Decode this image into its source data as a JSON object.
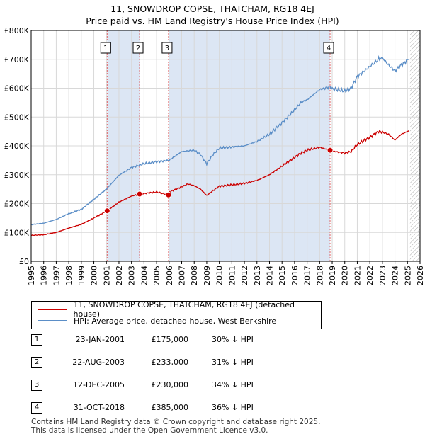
{
  "title_line1": "11, SNOWDROP COPSE, THATCHAM, RG18 4EJ",
  "title_line2": "Price paid vs. HM Land Registry's House Price Index (HPI)",
  "colors": {
    "property": "#cc0000",
    "hpi": "#5b8ec7",
    "shade": "#dce6f4",
    "grid": "#d8d8d8",
    "marker_line": "#e06666"
  },
  "chart_data": {
    "type": "line",
    "xlim": [
      1995,
      2026
    ],
    "ylim": [
      0,
      800000
    ],
    "y_ticks": [
      0,
      100000,
      200000,
      300000,
      400000,
      500000,
      600000,
      700000,
      800000
    ],
    "y_tick_labels": [
      "£0",
      "£100K",
      "£200K",
      "£300K",
      "£400K",
      "£500K",
      "£600K",
      "£700K",
      "£800K"
    ],
    "x_ticks": [
      "1995",
      "1996",
      "1997",
      "1998",
      "1999",
      "2000",
      "2001",
      "2002",
      "2003",
      "2004",
      "2005",
      "2006",
      "2007",
      "2008",
      "2009",
      "2010",
      "2011",
      "2012",
      "2013",
      "2014",
      "2015",
      "2016",
      "2017",
      "2018",
      "2019",
      "2020",
      "2021",
      "2022",
      "2023",
      "2024",
      "2025",
      "2026"
    ],
    "series": [
      {
        "name": "11, SNOWDROP COPSE, THATCHAM, RG18 4EJ (detached house)",
        "points": [
          [
            1995,
            90000
          ],
          [
            1996,
            92000
          ],
          [
            1997,
            100000
          ],
          [
            1998,
            115000
          ],
          [
            1999,
            128000
          ],
          [
            2000,
            150000
          ],
          [
            2001.06,
            175000
          ],
          [
            2002,
            205000
          ],
          [
            2003,
            226000
          ],
          [
            2003.64,
            233000
          ],
          [
            2004,
            235000
          ],
          [
            2005,
            240000
          ],
          [
            2005.95,
            230000
          ],
          [
            2006,
            240000
          ],
          [
            2007,
            258000
          ],
          [
            2007.5,
            268000
          ],
          [
            2008,
            262000
          ],
          [
            2008.5,
            250000
          ],
          [
            2009,
            228000
          ],
          [
            2009.5,
            245000
          ],
          [
            2010,
            260000
          ],
          [
            2011,
            265000
          ],
          [
            2012,
            270000
          ],
          [
            2013,
            280000
          ],
          [
            2014,
            300000
          ],
          [
            2015,
            330000
          ],
          [
            2016,
            360000
          ],
          [
            2016.5,
            375000
          ],
          [
            2017,
            385000
          ],
          [
            2018,
            395000
          ],
          [
            2018.83,
            385000
          ],
          [
            2019,
            382000
          ],
          [
            2020,
            375000
          ],
          [
            2020.5,
            380000
          ],
          [
            2021,
            405000
          ],
          [
            2022,
            430000
          ],
          [
            2022.7,
            450000
          ],
          [
            2023,
            448000
          ],
          [
            2023.5,
            440000
          ],
          [
            2024,
            420000
          ],
          [
            2024.5,
            440000
          ],
          [
            2025.1,
            452000
          ]
        ]
      },
      {
        "name": "HPI: Average price, detached house, West Berkshire",
        "points": [
          [
            1995,
            127000
          ],
          [
            1996,
            132000
          ],
          [
            1997,
            145000
          ],
          [
            1998,
            165000
          ],
          [
            1999,
            180000
          ],
          [
            2000,
            215000
          ],
          [
            2001,
            250000
          ],
          [
            2002,
            298000
          ],
          [
            2003,
            325000
          ],
          [
            2004,
            338000
          ],
          [
            2005,
            345000
          ],
          [
            2006,
            350000
          ],
          [
            2007,
            380000
          ],
          [
            2008,
            385000
          ],
          [
            2008.5,
            370000
          ],
          [
            2009,
            338000
          ],
          [
            2009.5,
            370000
          ],
          [
            2010,
            392000
          ],
          [
            2011,
            396000
          ],
          [
            2012,
            400000
          ],
          [
            2013,
            415000
          ],
          [
            2014,
            440000
          ],
          [
            2015,
            480000
          ],
          [
            2016,
            525000
          ],
          [
            2016.5,
            550000
          ],
          [
            2017,
            560000
          ],
          [
            2018,
            595000
          ],
          [
            2018.83,
            605000
          ],
          [
            2019,
            598000
          ],
          [
            2020,
            590000
          ],
          [
            2020.5,
            600000
          ],
          [
            2021,
            640000
          ],
          [
            2022,
            675000
          ],
          [
            2022.7,
            700000
          ],
          [
            2023,
            705000
          ],
          [
            2023.5,
            680000
          ],
          [
            2024,
            660000
          ],
          [
            2024.5,
            680000
          ],
          [
            2025.1,
            700000
          ]
        ]
      }
    ],
    "sales": [
      {
        "num": "1",
        "x": 2001.06,
        "value": 175000
      },
      {
        "num": "2",
        "x": 2003.64,
        "value": 233000
      },
      {
        "num": "3",
        "x": 2005.95,
        "value": 230000
      },
      {
        "num": "4",
        "x": 2018.83,
        "value": 385000
      }
    ],
    "shaded_ranges": [
      [
        2001.06,
        2003.64
      ],
      [
        2005.95,
        2018.83
      ]
    ],
    "hatched_from": 2025.2
  },
  "legend": {
    "property_label": "11, SNOWDROP COPSE, THATCHAM, RG18 4EJ (detached house)",
    "hpi_label": "HPI: Average price, detached house, West Berkshire"
  },
  "sales_table": [
    {
      "num": "1",
      "date": "23-JAN-2001",
      "price": "£175,000",
      "hpi": "30% ↓ HPI"
    },
    {
      "num": "2",
      "date": "22-AUG-2003",
      "price": "£233,000",
      "hpi": "31% ↓ HPI"
    },
    {
      "num": "3",
      "date": "12-DEC-2005",
      "price": "£230,000",
      "hpi": "34% ↓ HPI"
    },
    {
      "num": "4",
      "date": "31-OCT-2018",
      "price": "£385,000",
      "hpi": "36% ↓ HPI"
    }
  ],
  "footer": {
    "line1": "Contains HM Land Registry data © Crown copyright and database right 2025.",
    "line2": "This data is licensed under the Open Government Licence v3.0."
  }
}
